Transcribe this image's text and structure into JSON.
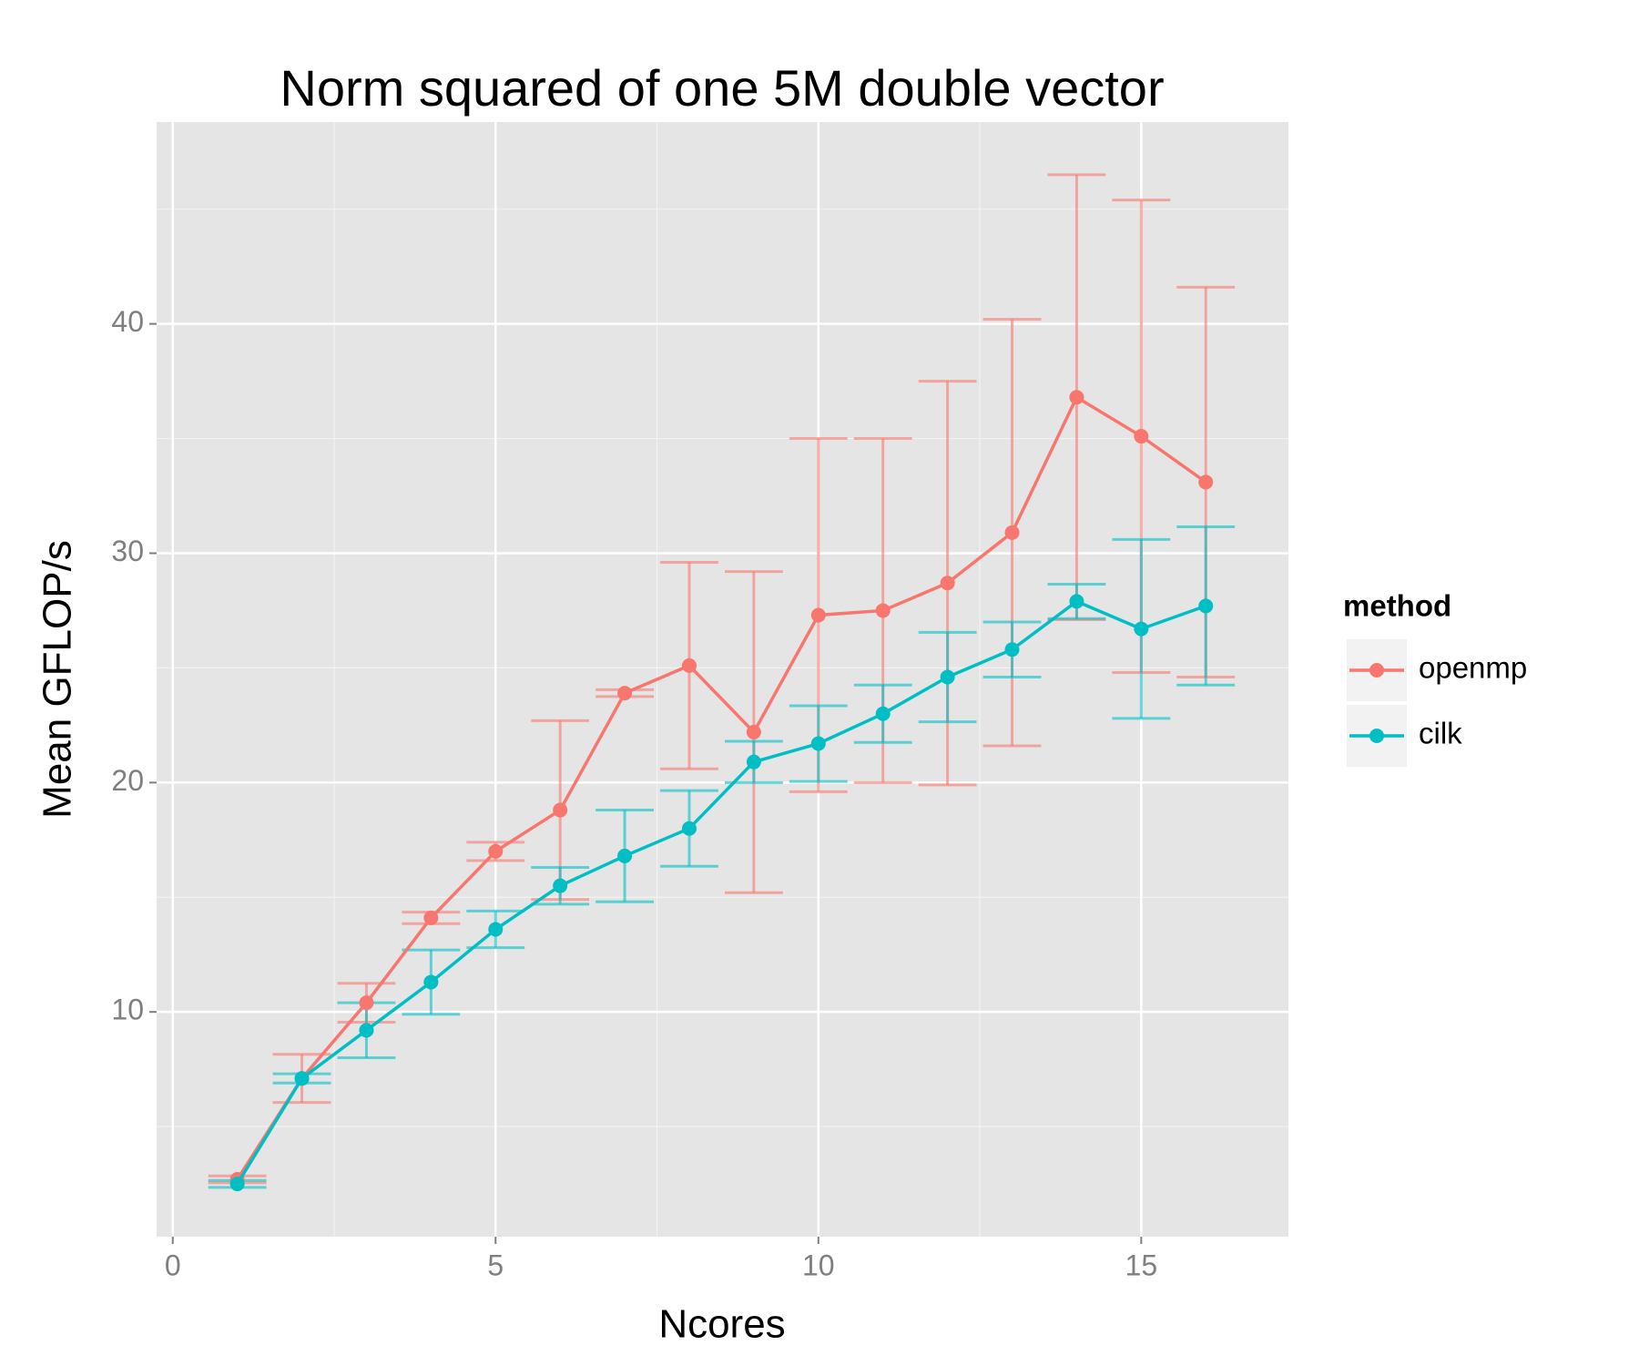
{
  "chart_data": {
    "type": "line",
    "title": "Norm squared of one 5M double vector",
    "xlabel": "Ncores",
    "ylabel": "Mean GFLOP/s",
    "x": [
      1,
      2,
      3,
      4,
      5,
      6,
      7,
      8,
      9,
      10,
      11,
      12,
      13,
      14,
      15,
      16
    ],
    "series": [
      {
        "name": "openmp",
        "color": "#F8766D",
        "values": [
          2.7,
          7.1,
          10.4,
          14.1,
          17.0,
          18.8,
          23.9,
          25.1,
          22.2,
          27.3,
          27.5,
          28.7,
          30.9,
          36.8,
          35.1,
          33.1
        ],
        "errors": [
          0.15,
          1.05,
          0.85,
          0.25,
          0.4,
          3.9,
          0.15,
          4.5,
          7.0,
          7.7,
          7.5,
          8.8,
          9.3,
          9.7,
          10.3,
          8.5
        ]
      },
      {
        "name": "cilk",
        "color": "#00BFC4",
        "values": [
          2.5,
          7.1,
          9.2,
          11.3,
          13.6,
          15.5,
          16.8,
          18.0,
          20.9,
          21.7,
          23.0,
          24.6,
          25.8,
          27.9,
          26.7,
          27.7
        ],
        "errors": [
          0.15,
          0.2,
          1.2,
          1.4,
          0.8,
          0.8,
          2.0,
          1.65,
          0.9,
          1.65,
          1.25,
          1.95,
          1.2,
          0.75,
          3.9,
          3.45
        ]
      }
    ],
    "legend_title": "method",
    "xlim": [
      -0.25,
      17.28
    ],
    "ylim": [
      0.2,
      48.8
    ],
    "xticks": [
      0,
      5,
      10,
      15
    ],
    "yticks": [
      10,
      20,
      30,
      40
    ],
    "grid": true
  }
}
